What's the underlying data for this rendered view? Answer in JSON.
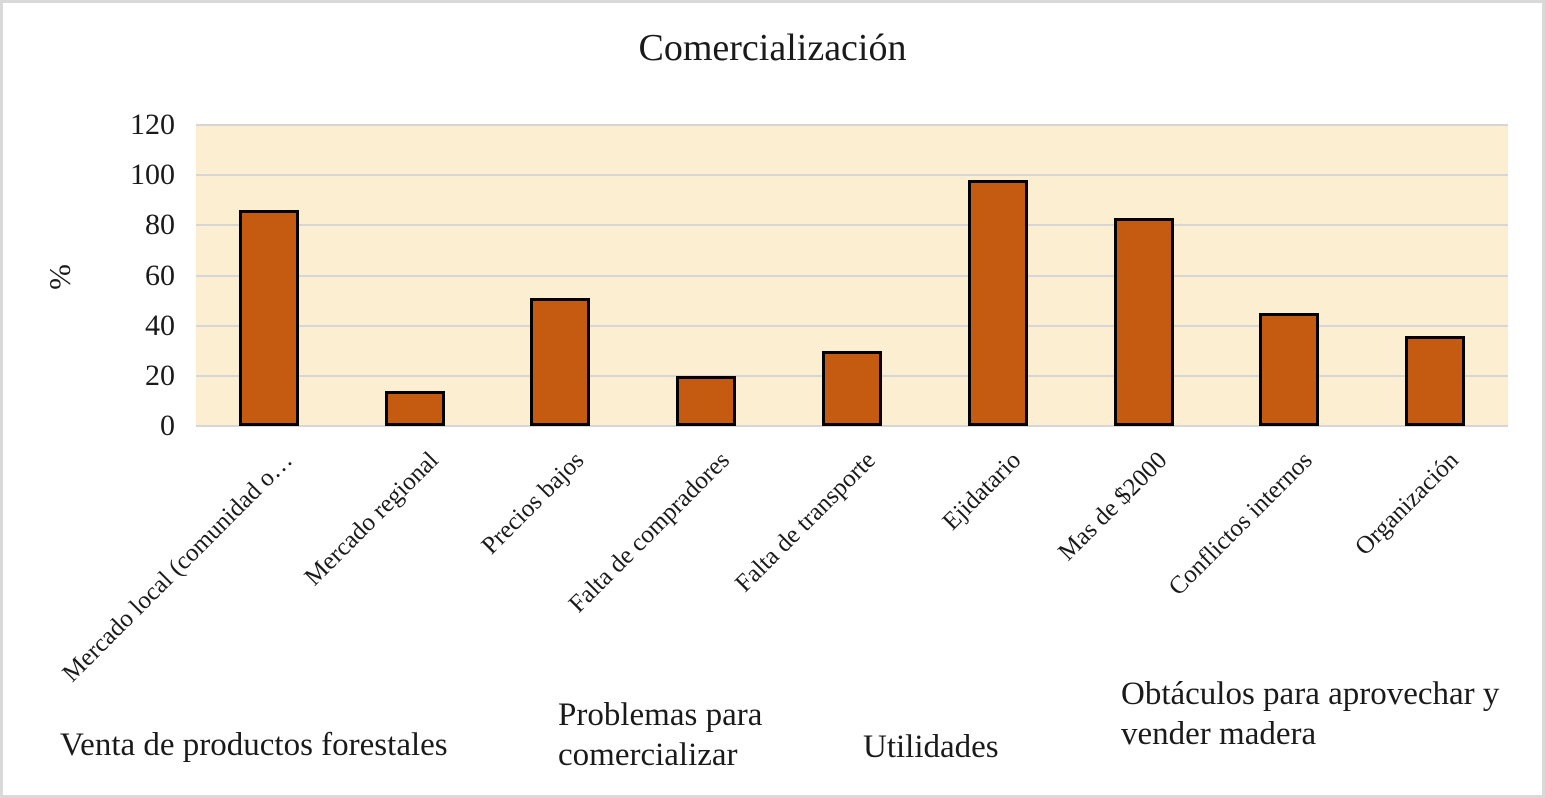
{
  "chart_data": {
    "type": "bar",
    "title": "Comercialización",
    "ylabel": "%",
    "xlabel": "",
    "ylim": [
      0,
      120
    ],
    "yticks": [
      0,
      20,
      40,
      60,
      80,
      100,
      120
    ],
    "grid": true,
    "legend": false,
    "categories": [
      "Mercado local (comunidad o…",
      "Mercado regional",
      "Precios bajos",
      "Falta de compradores",
      "Falta de transporte",
      "Ejidatario",
      "Mas de $2000",
      "Conflictos internos",
      "Organización"
    ],
    "values": [
      86,
      14,
      51,
      20,
      30,
      98,
      83,
      45,
      36
    ],
    "group_labels": [
      "Venta de productos forestales",
      "Problemas para\ncomercializar",
      "Utilidades",
      "Obtáculos para aprovechar y\nvender madera"
    ],
    "colors": {
      "bar_fill": "#C55A11",
      "bar_border": "#000000",
      "plot_bg": "#FCEED0",
      "gridline": "#D6D6D6",
      "text": "#1A1A1A",
      "figure_border": "#D9D9D9",
      "figure_bg": "#FFFFFF"
    }
  }
}
